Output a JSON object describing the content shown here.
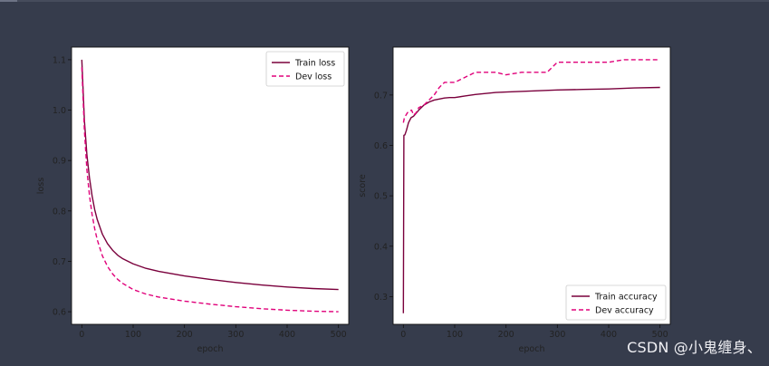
{
  "colors": {
    "background": "#363c4c",
    "train": "#7a003c",
    "dev": "#e0007a"
  },
  "watermark": "CSDN @小鬼缠身、",
  "chart_data": [
    {
      "type": "line",
      "xlabel": "epoch",
      "ylabel": "loss",
      "xlim": [
        -20,
        520
      ],
      "ylim": [
        0.575,
        1.125
      ],
      "xticks": [
        0,
        100,
        200,
        300,
        400,
        500
      ],
      "yticks": [
        0.6,
        0.7,
        0.8,
        0.9,
        1.0,
        1.1
      ],
      "ytick_labels": [
        "0.6",
        "0.7",
        "0.8",
        "0.9",
        "1.0",
        "1.1"
      ],
      "legend_position": "top-right",
      "series": [
        {
          "name": "Train loss",
          "style": "solid",
          "x": [
            0,
            5,
            10,
            15,
            20,
            25,
            30,
            40,
            50,
            60,
            70,
            80,
            100,
            125,
            150,
            200,
            250,
            300,
            350,
            400,
            450,
            500
          ],
          "y": [
            1.1,
            0.98,
            0.91,
            0.865,
            0.83,
            0.803,
            0.783,
            0.754,
            0.735,
            0.722,
            0.712,
            0.705,
            0.695,
            0.686,
            0.68,
            0.671,
            0.664,
            0.658,
            0.653,
            0.649,
            0.646,
            0.644
          ]
        },
        {
          "name": "Dev loss",
          "style": "dashed",
          "x": [
            0,
            5,
            10,
            15,
            20,
            25,
            30,
            40,
            50,
            60,
            70,
            80,
            100,
            125,
            150,
            200,
            250,
            300,
            350,
            400,
            450,
            500
          ],
          "y": [
            1.085,
            0.96,
            0.88,
            0.83,
            0.793,
            0.765,
            0.743,
            0.711,
            0.69,
            0.675,
            0.664,
            0.656,
            0.644,
            0.635,
            0.629,
            0.621,
            0.615,
            0.61,
            0.606,
            0.603,
            0.601,
            0.6
          ]
        }
      ]
    },
    {
      "type": "line",
      "xlabel": "epoch",
      "ylabel": "score",
      "xlim": [
        -20,
        520
      ],
      "ylim": [
        0.245,
        0.795
      ],
      "xticks": [
        0,
        100,
        200,
        300,
        400,
        500
      ],
      "yticks": [
        0.3,
        0.4,
        0.5,
        0.6,
        0.7
      ],
      "ytick_labels": [
        "0.3",
        "0.4",
        "0.5",
        "0.6",
        "0.7"
      ],
      "legend_position": "lower-right",
      "series": [
        {
          "name": "Train accuracy",
          "style": "solid",
          "x": [
            0,
            1,
            3,
            6,
            10,
            15,
            20,
            30,
            40,
            50,
            60,
            70,
            80,
            90,
            100,
            120,
            140,
            160,
            180,
            200,
            250,
            300,
            350,
            400,
            450,
            500
          ],
          "y": [
            0.267,
            0.62,
            0.621,
            0.63,
            0.645,
            0.655,
            0.658,
            0.67,
            0.68,
            0.686,
            0.69,
            0.692,
            0.694,
            0.695,
            0.695,
            0.698,
            0.701,
            0.703,
            0.705,
            0.706,
            0.708,
            0.71,
            0.711,
            0.712,
            0.714,
            0.715
          ]
        },
        {
          "name": "Dev accuracy",
          "style": "dashed",
          "x": [
            0,
            2,
            5,
            8,
            12,
            16,
            20,
            25,
            30,
            40,
            50,
            60,
            70,
            80,
            100,
            110,
            120,
            140,
            180,
            200,
            230,
            280,
            290,
            300,
            400,
            430,
            500
          ],
          "y": [
            0.645,
            0.655,
            0.66,
            0.665,
            0.668,
            0.67,
            0.66,
            0.665,
            0.675,
            0.68,
            0.69,
            0.7,
            0.715,
            0.725,
            0.725,
            0.73,
            0.735,
            0.745,
            0.745,
            0.74,
            0.745,
            0.745,
            0.755,
            0.765,
            0.765,
            0.77,
            0.77
          ]
        }
      ]
    }
  ]
}
